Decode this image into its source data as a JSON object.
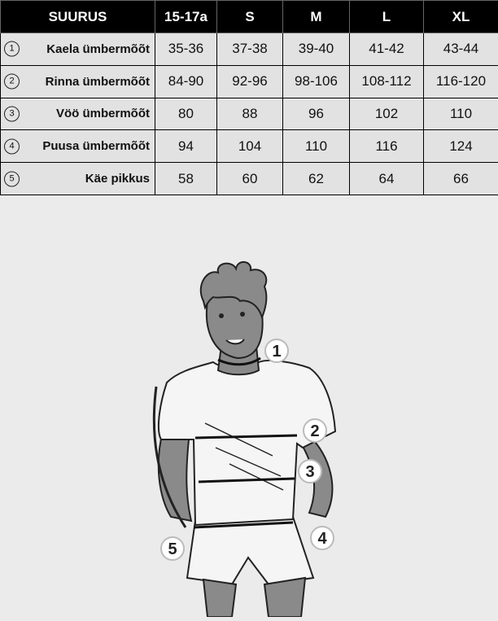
{
  "table": {
    "header": [
      "SUURUS",
      "15-17a",
      "S",
      "M",
      "L",
      "XL"
    ],
    "rows": [
      {
        "num": "1",
        "label": "Kaela ümbermõõt",
        "values": [
          "35-36",
          "37-38",
          "39-40",
          "41-42",
          "43-44"
        ]
      },
      {
        "num": "2",
        "label": "Rinna ümbermõõt",
        "values": [
          "84-90",
          "92-96",
          "98-106",
          "108-112",
          "116-120"
        ]
      },
      {
        "num": "3",
        "label": "Vöö ümbermõõt",
        "values": [
          "80",
          "88",
          "96",
          "102",
          "110"
        ]
      },
      {
        "num": "4",
        "label": "Puusa ümbermõõt",
        "values": [
          "94",
          "104",
          "110",
          "116",
          "124"
        ]
      },
      {
        "num": "5",
        "label": "Käe pikkus",
        "values": [
          "58",
          "60",
          "62",
          "64",
          "66"
        ]
      }
    ]
  },
  "illustration": {
    "markers": [
      "1",
      "2",
      "3",
      "4",
      "5"
    ]
  }
}
